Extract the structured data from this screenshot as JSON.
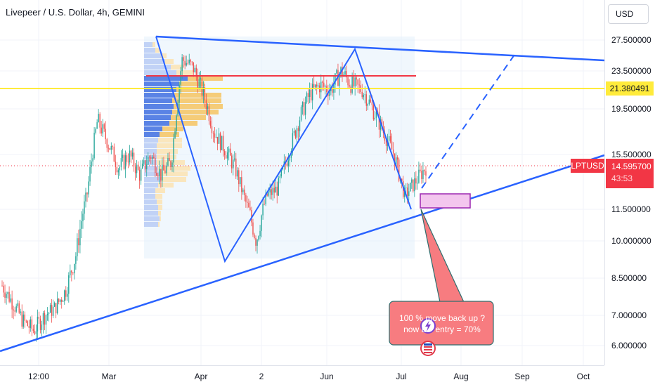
{
  "header": {
    "title": "Livepeer / U.S. Dollar, 4h, GEMINI"
  },
  "price_axis": {
    "currency": "USD",
    "ticks": [
      "27.500000",
      "23.500000",
      "19.500000",
      "15.500000",
      "11.500000",
      "10.000000",
      "8.500000",
      "7.000000",
      "6.000000"
    ],
    "highlight_value": "21.380491",
    "symbol": "LPTUSD",
    "last_price": "14.595700",
    "countdown": "43:53"
  },
  "time_axis": {
    "ticks": [
      "12:00",
      "Mar",
      "Apr",
      "2",
      "Jun",
      "Jul",
      "Aug",
      "Sep",
      "Oct"
    ]
  },
  "annotation": {
    "line1": "100 % move back up ?",
    "line2": "now L",
    "line2b": "entry = 70%"
  },
  "colors": {
    "up": "#26a69a",
    "down": "#ef5350",
    "trend": "#2962ff",
    "hline_yellow": "#ffeb3b",
    "hline_red": "#f23645",
    "callout": "#f77c80",
    "box": "#9c27b0"
  },
  "chart_data": {
    "type": "candlestick",
    "symbol": "LPTUSD",
    "interval": "4h",
    "exchange": "GEMINI",
    "series": [
      {
        "name": "LPTUSD",
        "values": [
          8.2,
          7.5,
          6.8,
          6.5,
          7.0,
          7.3,
          8.0,
          9.5,
          12.5,
          18.5,
          16.5,
          14.5,
          15.5,
          14.0,
          15.5,
          14.0,
          15.0,
          25.0,
          24.0,
          21.0,
          17.5,
          16.0,
          14.5,
          12.0,
          10.0,
          12.5,
          13.0,
          15.5,
          18.5,
          21.0,
          22.0,
          21.5,
          23.5,
          22.0,
          21.5,
          19.5,
          17.5,
          15.5,
          12.5,
          13.5,
          14.6
        ]
      }
    ],
    "horizontal_lines": [
      23.0,
      21.380491
    ],
    "last_price": 14.5957
  }
}
